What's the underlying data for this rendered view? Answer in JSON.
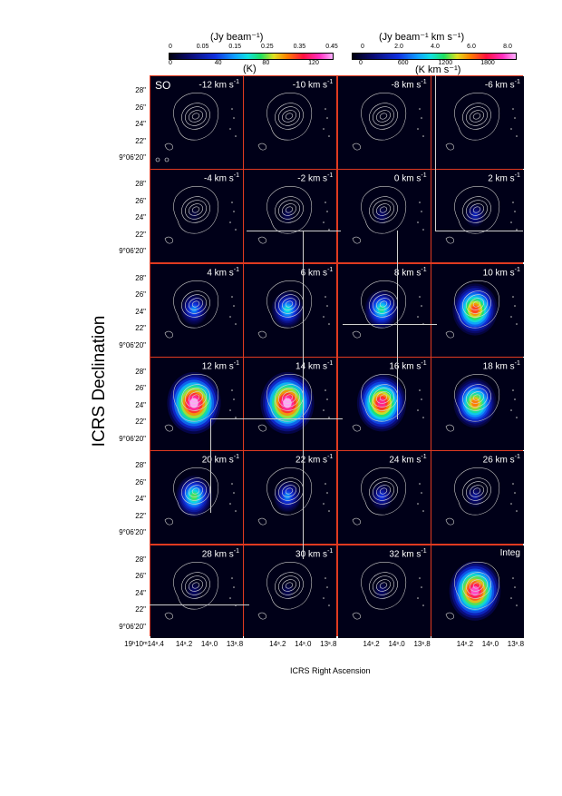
{
  "colorbar_left": {
    "title": "(Jy beam⁻¹)",
    "top_ticks": [
      "0",
      "0.05",
      "0.15",
      "0.25",
      "0.35",
      "0.45"
    ],
    "bottom_ticks": [
      "0",
      "40",
      "80",
      "120"
    ],
    "unit": "(K)"
  },
  "colorbar_right": {
    "title": "(Jy beam⁻¹ km s⁻¹)",
    "top_ticks": [
      "0",
      "2.0",
      "4.0",
      "6.0",
      "8.0"
    ],
    "bottom_ticks": [
      "0",
      "600",
      "1200",
      "1800"
    ],
    "unit": "(K  km s⁻¹)"
  },
  "molecule": "SO",
  "panels": [
    {
      "label": "-12 km s",
      "intensity": 0.0
    },
    {
      "label": "-10 km s",
      "intensity": 0.0
    },
    {
      "label": "-8 km s",
      "intensity": 0.0
    },
    {
      "label": "-6 km s",
      "intensity": 0.0
    },
    {
      "label": "-4 km s",
      "intensity": 0.08
    },
    {
      "label": "-2 km s",
      "intensity": 0.12
    },
    {
      "label": "0 km s",
      "intensity": 0.15
    },
    {
      "label": "2 km s",
      "intensity": 0.25
    },
    {
      "label": "4 km s",
      "intensity": 0.4
    },
    {
      "label": "6 km s",
      "intensity": 0.5
    },
    {
      "label": "8 km s",
      "intensity": 0.55
    },
    {
      "label": "10 km s",
      "intensity": 0.8
    },
    {
      "label": "12 km s",
      "intensity": 1.0
    },
    {
      "label": "14 km s",
      "intensity": 1.0
    },
    {
      "label": "16 km s",
      "intensity": 0.9
    },
    {
      "label": "18 km s",
      "intensity": 0.75
    },
    {
      "label": "20 km s",
      "intensity": 0.6
    },
    {
      "label": "22 km s",
      "intensity": 0.4
    },
    {
      "label": "24 km s",
      "intensity": 0.3
    },
    {
      "label": "26 km s",
      "intensity": 0.22
    },
    {
      "label": "28 km s",
      "intensity": 0.15
    },
    {
      "label": "30 km s",
      "intensity": 0.12
    },
    {
      "label": "32 km s",
      "intensity": 0.15
    },
    {
      "label": "Integ",
      "intensity": 0.95
    }
  ],
  "vel_unit_sup": "-1",
  "y_ticks": [
    "28\"",
    "26\"",
    "24\"",
    "22\"",
    "9°06'20\""
  ],
  "x_ticks": [
    "19ʰ10ᵐ14ˢ.4",
    "14ˢ.2",
    "14ˢ.0",
    "13ˢ.8"
  ],
  "x_ticks_short": [
    "14ˢ.2",
    "14ˢ.0",
    "13ˢ.8"
  ],
  "axis_titles": {
    "y": "ICRS Declination",
    "x": "ICRS Right Ascension"
  }
}
